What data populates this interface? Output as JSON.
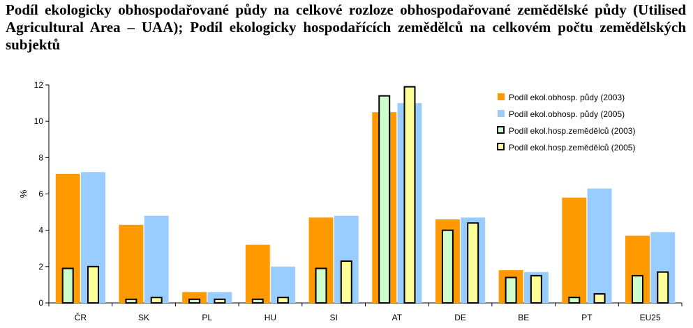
{
  "title": "Podíl ekologicky obhospodařované půdy na celkové rozloze obhospodařované zemědělské půdy (Utilised Agricultural Area – UAA); Podíl ekologicky hospodařících zemědělců na celkovém počtu zemědělských subjektů",
  "chart_data": {
    "type": "bar",
    "ylabel": "%",
    "ylim": [
      0,
      12
    ],
    "yticks": [
      0,
      2,
      4,
      6,
      8,
      10,
      12
    ],
    "grid": false,
    "legend_position": "top-right",
    "categories": [
      "ČR",
      "SK",
      "PL",
      "HU",
      "SI",
      "AT",
      "DE",
      "BE",
      "PT",
      "EU25"
    ],
    "series": [
      {
        "name": "Podíl ekol.obhosp. půdy (2003)",
        "color": "#FF9900",
        "style": "wide",
        "values": [
          7.1,
          4.3,
          0.6,
          3.2,
          4.7,
          10.5,
          4.6,
          1.8,
          5.8,
          3.7
        ]
      },
      {
        "name": "Podíl ekol.obhosp. půdy (2005)",
        "color": "#99CCFF",
        "style": "wide",
        "values": [
          7.2,
          4.8,
          0.6,
          2.0,
          4.8,
          11.0,
          4.7,
          1.7,
          6.3,
          3.9
        ]
      },
      {
        "name": "Podíl ekol.hosp.zemědělců (2003)",
        "color": "#CCFFCC",
        "style": "narrow",
        "values": [
          1.9,
          0.2,
          0.2,
          0.2,
          1.9,
          11.4,
          4.0,
          1.4,
          0.3,
          1.5
        ]
      },
      {
        "name": "Podíl ekol.hosp.zemědělců (2005)",
        "color": "#FFFF99",
        "style": "narrow",
        "values": [
          2.0,
          0.3,
          0.2,
          0.3,
          2.3,
          11.9,
          4.4,
          1.5,
          0.5,
          1.7
        ]
      }
    ]
  }
}
